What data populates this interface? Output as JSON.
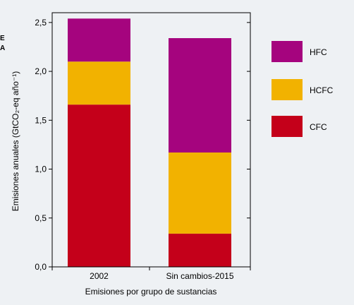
{
  "corner_text": [
    "E",
    "A"
  ],
  "chart_data": {
    "type": "bar",
    "stacked": true,
    "categories": [
      "2002",
      "Sin cambios-2015"
    ],
    "series": [
      {
        "name": "CFC",
        "values": [
          1.66,
          0.34
        ],
        "color": "#c4001a"
      },
      {
        "name": "HCFC",
        "values": [
          0.44,
          0.83
        ],
        "color": "#f2b200"
      },
      {
        "name": "HFC",
        "values": [
          0.44,
          1.17
        ],
        "color": "#a5047e"
      }
    ],
    "legend_order": [
      "HFC",
      "HCFC",
      "CFC"
    ],
    "legend_position": "right",
    "xlabel": "Emisiones por grupo de sustancias",
    "ylabel": "Emisiones anuales (GtCO₂-eq año⁻¹)",
    "ylim": [
      0,
      2.6
    ],
    "yticks": [
      0,
      0.5,
      1.0,
      1.5,
      2.0,
      2.5
    ],
    "ytick_labels": [
      "0,0",
      "0,5",
      "1,0",
      "1,5",
      "2,0",
      "2,5"
    ],
    "grid": false
  }
}
